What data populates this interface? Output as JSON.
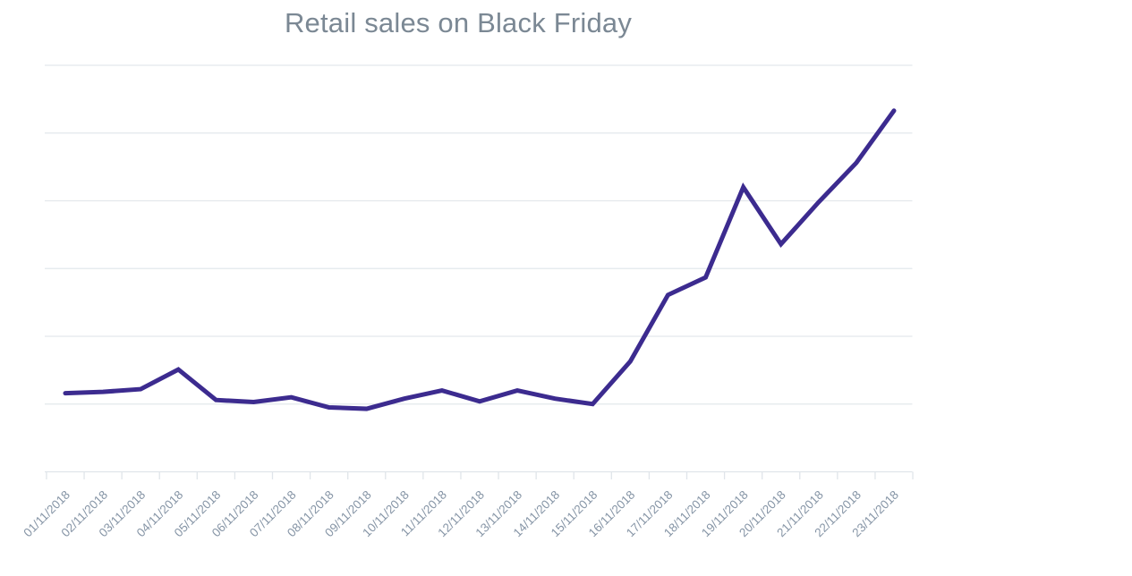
{
  "page": {
    "background": "#FFFFFF"
  },
  "chart_data": {
    "type": "line",
    "title": "Retail sales on Black Friday",
    "categories": [
      "01/11/2018",
      "02/11/2018",
      "03/11/2018",
      "04/11/2018",
      "05/11/2018",
      "06/11/2018",
      "07/11/2018",
      "08/11/2018",
      "09/11/2018",
      "10/11/2018",
      "11/11/2018",
      "12/11/2018",
      "13/11/2018",
      "14/11/2018",
      "15/11/2018",
      "16/11/2018",
      "17/11/2018",
      "18/11/2018",
      "19/11/2018",
      "20/11/2018",
      "21/11/2018",
      "22/11/2018",
      "23/11/2018"
    ],
    "series": [
      {
        "name": "Retail sales",
        "values": [
          58,
          59,
          61,
          75.5,
          53,
          51.5,
          55,
          47.5,
          46.5,
          54,
          60,
          52,
          60,
          54,
          50,
          81.5,
          130.5,
          143.5,
          210,
          168,
          199,
          228,
          266.5
        ]
      }
    ],
    "xlabel": "",
    "ylabel": "",
    "ylim": [
      0,
      300
    ],
    "y_gridline_interval": 50,
    "y_axis_labels_visible": false,
    "grid": "horizontal",
    "legend": "none",
    "x_tick_label_rotation_deg": -45,
    "colors": {
      "line": "#3C2B8F",
      "grid": "#E3E8EC",
      "axis": "#E0E5EA",
      "tick": "#E0E5EA",
      "tick_label": "#8695A6",
      "title": "#7B8894",
      "background": "#FFFFFF"
    }
  }
}
